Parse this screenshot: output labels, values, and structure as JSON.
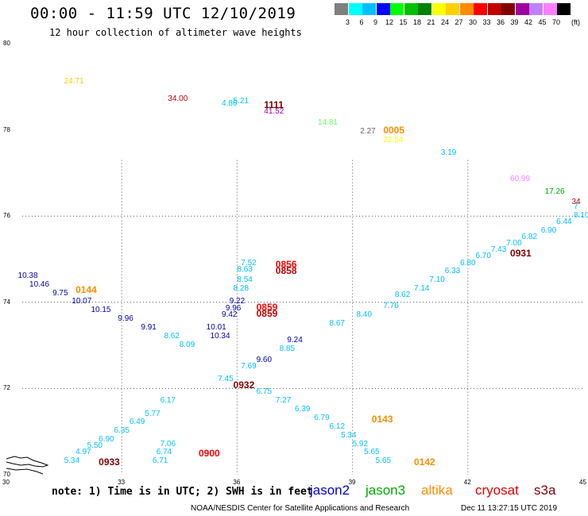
{
  "header": {
    "title": "00:00 - 11:59 UTC 12/10/2019",
    "subtitle": "12 hour collection of altimeter wave heights"
  },
  "legend": {
    "unit": "(ft)",
    "bins": [
      {
        "label": "3",
        "color": "#7f7f7f"
      },
      {
        "label": "6",
        "color": "#00ffff"
      },
      {
        "label": "9",
        "color": "#00bfff"
      },
      {
        "label": "12",
        "color": "#0000ff"
      },
      {
        "label": "15",
        "color": "#00ff00"
      },
      {
        "label": "18",
        "color": "#00c000"
      },
      {
        "label": "21",
        "color": "#008000"
      },
      {
        "label": "24",
        "color": "#ffff00"
      },
      {
        "label": "27",
        "color": "#ffd000"
      },
      {
        "label": "30",
        "color": "#ff8c00"
      },
      {
        "label": "33",
        "color": "#ff0000"
      },
      {
        "label": "36",
        "color": "#c00000"
      },
      {
        "label": "39",
        "color": "#800000"
      },
      {
        "label": "42",
        "color": "#a000a0"
      },
      {
        "label": "45",
        "color": "#c080ff"
      },
      {
        "label": "70",
        "color": "#ff80ff"
      },
      {
        "label": "",
        "color": "#000000"
      }
    ]
  },
  "map": {
    "lon_range": [
      30,
      45
    ],
    "lat_range": [
      70,
      80
    ],
    "lat_ticks": [
      {
        "value": 80,
        "label": "80"
      },
      {
        "value": 78,
        "label": "78"
      },
      {
        "value": 76,
        "label": "76"
      },
      {
        "value": 74,
        "label": "74"
      },
      {
        "value": 72,
        "label": "72"
      },
      {
        "value": 70,
        "label": "70"
      }
    ],
    "lon_ticks": [
      {
        "value": 30,
        "label": "30"
      },
      {
        "value": 33,
        "label": "33"
      },
      {
        "value": 36,
        "label": "36"
      },
      {
        "value": 39,
        "label": "39"
      },
      {
        "value": 42,
        "label": "42"
      },
      {
        "value": 45,
        "label": "45"
      }
    ],
    "grid": true,
    "observations": [
      {
        "lon": 31.5,
        "lat": 79.2,
        "text": "24.71",
        "color": "#ffcc00"
      },
      {
        "lon": 34.2,
        "lat": 78.8,
        "text": "34.00",
        "color": "#c00000"
      },
      {
        "lon": 35.6,
        "lat": 78.7,
        "text": "4.86",
        "color": "#00bfff"
      },
      {
        "lon": 35.9,
        "lat": 78.75,
        "text": "5.21",
        "color": "#00bfff"
      },
      {
        "lon": 36.7,
        "lat": 78.5,
        "text": "41.52",
        "color": "#a000a0"
      },
      {
        "lon": 38.1,
        "lat": 78.25,
        "text": "14.81",
        "color": "#66ff66"
      },
      {
        "lon": 39.2,
        "lat": 78.05,
        "text": "2.27",
        "color": "#666666"
      },
      {
        "lon": 39.8,
        "lat": 77.85,
        "text": "22.54",
        "color": "#ffff00"
      },
      {
        "lon": 41.3,
        "lat": 77.55,
        "text": "3.19",
        "color": "#00bfff"
      },
      {
        "lon": 43.1,
        "lat": 76.95,
        "text": "60.99",
        "color": "#ff80ff"
      },
      {
        "lon": 44.0,
        "lat": 76.65,
        "text": "17.26",
        "color": "#00b000"
      },
      {
        "lon": 44.7,
        "lat": 76.4,
        "text": "34",
        "color": "#c00000"
      },
      {
        "lon": 30.3,
        "lat": 74.7,
        "text": "10.38",
        "color": "#0000aa"
      },
      {
        "lon": 30.6,
        "lat": 74.5,
        "text": "10.46",
        "color": "#0000aa"
      },
      {
        "lon": 31.2,
        "lat": 74.3,
        "text": "9.75",
        "color": "#0000aa"
      },
      {
        "lon": 31.7,
        "lat": 74.1,
        "text": "10.07",
        "color": "#0000aa"
      },
      {
        "lon": 32.2,
        "lat": 73.9,
        "text": "10.15",
        "color": "#0000aa"
      },
      {
        "lon": 32.9,
        "lat": 73.7,
        "text": "9.96",
        "color": "#0000aa"
      },
      {
        "lon": 33.5,
        "lat": 73.5,
        "text": "9.91",
        "color": "#0000aa"
      },
      {
        "lon": 34.1,
        "lat": 73.3,
        "text": "8.62",
        "color": "#00bfff"
      },
      {
        "lon": 34.5,
        "lat": 73.1,
        "text": "8.09",
        "color": "#00bfff"
      },
      {
        "lon": 35.2,
        "lat": 73.5,
        "text": "10.01",
        "color": "#0000aa"
      },
      {
        "lon": 35.3,
        "lat": 73.3,
        "text": "10.34",
        "color": "#0000aa"
      },
      {
        "lon": 35.6,
        "lat": 73.8,
        "text": "9.42",
        "color": "#0000aa"
      },
      {
        "lon": 35.7,
        "lat": 73.95,
        "text": "9.96",
        "color": "#0000aa"
      },
      {
        "lon": 35.8,
        "lat": 74.1,
        "text": "9.22",
        "color": "#0000aa"
      },
      {
        "lon": 35.9,
        "lat": 74.4,
        "text": "8.28",
        "color": "#00bfff"
      },
      {
        "lon": 36.0,
        "lat": 74.6,
        "text": "8.54",
        "color": "#00bfff"
      },
      {
        "lon": 36.0,
        "lat": 74.85,
        "text": "8.63",
        "color": "#00bfff"
      },
      {
        "lon": 36.1,
        "lat": 75.0,
        "text": "7.52",
        "color": "#00bfff"
      },
      {
        "lon": 36.5,
        "lat": 72.75,
        "text": "9.60",
        "color": "#0000aa"
      },
      {
        "lon": 36.1,
        "lat": 72.6,
        "text": "7.69",
        "color": "#00bfff"
      },
      {
        "lon": 35.5,
        "lat": 72.3,
        "text": "7.45",
        "color": "#00bfff"
      },
      {
        "lon": 37.1,
        "lat": 73.0,
        "text": "8.85",
        "color": "#00bfff"
      },
      {
        "lon": 37.3,
        "lat": 73.2,
        "text": "9.24",
        "color": "#0000aa"
      },
      {
        "lon": 38.4,
        "lat": 73.6,
        "text": "8.67",
        "color": "#00bfff"
      },
      {
        "lon": 39.1,
        "lat": 73.8,
        "text": "8.40",
        "color": "#00bfff"
      },
      {
        "lon": 39.8,
        "lat": 74.0,
        "text": "7.76",
        "color": "#00bfff"
      },
      {
        "lon": 40.1,
        "lat": 74.25,
        "text": "8.62",
        "color": "#00bfff"
      },
      {
        "lon": 40.6,
        "lat": 74.4,
        "text": "7.14",
        "color": "#00bfff"
      },
      {
        "lon": 41.0,
        "lat": 74.6,
        "text": "7.10",
        "color": "#00bfff"
      },
      {
        "lon": 41.4,
        "lat": 74.8,
        "text": "6.33",
        "color": "#00bfff"
      },
      {
        "lon": 41.8,
        "lat": 75.0,
        "text": "6.80",
        "color": "#00bfff"
      },
      {
        "lon": 42.2,
        "lat": 75.15,
        "text": "6.70",
        "color": "#00bfff"
      },
      {
        "lon": 42.6,
        "lat": 75.3,
        "text": "7.43",
        "color": "#00bfff"
      },
      {
        "lon": 43.0,
        "lat": 75.45,
        "text": "7.00",
        "color": "#00bfff"
      },
      {
        "lon": 43.4,
        "lat": 75.6,
        "text": "6.82",
        "color": "#00bfff"
      },
      {
        "lon": 43.9,
        "lat": 75.75,
        "text": "6.90",
        "color": "#00bfff"
      },
      {
        "lon": 44.3,
        "lat": 75.95,
        "text": "6.44",
        "color": "#00bfff"
      },
      {
        "lon": 44.8,
        "lat": 76.1,
        "text": "8.10",
        "color": "#00bfff"
      },
      {
        "lon": 45.2,
        "lat": 76.3,
        "text": "7",
        "color": "#00bfff"
      },
      {
        "lon": 36.5,
        "lat": 72.0,
        "text": "6.75",
        "color": "#00bfff"
      },
      {
        "lon": 37.0,
        "lat": 71.8,
        "text": "7.27",
        "color": "#00bfff"
      },
      {
        "lon": 37.5,
        "lat": 71.6,
        "text": "6.39",
        "color": "#00bfff"
      },
      {
        "lon": 38.0,
        "lat": 71.4,
        "text": "6.79",
        "color": "#00bfff"
      },
      {
        "lon": 38.4,
        "lat": 71.2,
        "text": "6.12",
        "color": "#00bfff"
      },
      {
        "lon": 38.7,
        "lat": 71.0,
        "text": "5.34",
        "color": "#00bfff"
      },
      {
        "lon": 39.0,
        "lat": 70.8,
        "text": "5.92",
        "color": "#00bfff"
      },
      {
        "lon": 39.3,
        "lat": 70.6,
        "text": "5.65",
        "color": "#00bfff"
      },
      {
        "lon": 39.6,
        "lat": 70.4,
        "text": "5.65",
        "color": "#00bfff"
      },
      {
        "lon": 34.0,
        "lat": 71.8,
        "text": "6.17",
        "color": "#00bfff"
      },
      {
        "lon": 33.6,
        "lat": 71.5,
        "text": "5.77",
        "color": "#00bfff"
      },
      {
        "lon": 33.2,
        "lat": 71.3,
        "text": "6.49",
        "color": "#00bfff"
      },
      {
        "lon": 32.8,
        "lat": 71.1,
        "text": "6.35",
        "color": "#00bfff"
      },
      {
        "lon": 32.4,
        "lat": 70.9,
        "text": "6.90",
        "color": "#00bfff"
      },
      {
        "lon": 32.1,
        "lat": 70.75,
        "text": "5.50",
        "color": "#00bfff"
      },
      {
        "lon": 31.8,
        "lat": 70.6,
        "text": "4.97",
        "color": "#00bfff"
      },
      {
        "lon": 31.5,
        "lat": 70.4,
        "text": "5.34",
        "color": "#00bfff"
      },
      {
        "lon": 34.0,
        "lat": 70.8,
        "text": "7.06",
        "color": "#00bfff"
      },
      {
        "lon": 33.9,
        "lat": 70.6,
        "text": "6.74",
        "color": "#00bfff"
      },
      {
        "lon": 33.8,
        "lat": 70.4,
        "text": "6.71",
        "color": "#00bfff"
      }
    ],
    "passes": [
      {
        "lon": 36.7,
        "lat": 78.7,
        "text": "1111",
        "color": "#800000"
      },
      {
        "lon": 39.8,
        "lat": 78.1,
        "text": "0005",
        "color": "#ff8c00"
      },
      {
        "lon": 31.8,
        "lat": 74.4,
        "text": "0144",
        "color": "#ff8c00"
      },
      {
        "lon": 37.0,
        "lat": 75.0,
        "text": "0856",
        "color": "#ff0000"
      },
      {
        "lon": 37.0,
        "lat": 74.85,
        "text": "0858",
        "color": "#c00000"
      },
      {
        "lon": 36.5,
        "lat": 74.0,
        "text": "0859",
        "color": "#ff0000"
      },
      {
        "lon": 36.5,
        "lat": 73.85,
        "text": "0859",
        "color": "#c00000"
      },
      {
        "lon": 43.1,
        "lat": 75.25,
        "text": "0931",
        "color": "#800000"
      },
      {
        "lon": 35.9,
        "lat": 72.2,
        "text": "0932",
        "color": "#800000"
      },
      {
        "lon": 39.5,
        "lat": 71.4,
        "text": "0143",
        "color": "#ff8c00"
      },
      {
        "lon": 35.0,
        "lat": 70.6,
        "text": "0900",
        "color": "#ff0000"
      },
      {
        "lon": 32.4,
        "lat": 70.4,
        "text": "0933",
        "color": "#800000"
      },
      {
        "lon": 40.6,
        "lat": 70.4,
        "text": "0142",
        "color": "#ff8c00"
      }
    ]
  },
  "footer": {
    "note": "note: 1) Time is in UTC; 2) SWH is in feet",
    "satellites": [
      {
        "name": "jason2",
        "color": "#0000cc"
      },
      {
        "name": "jason3",
        "color": "#00aa00"
      },
      {
        "name": "altika",
        "color": "#ff8c00"
      },
      {
        "name": "cryosat",
        "color": "#dd0000"
      },
      {
        "name": "s3a",
        "color": "#800000"
      }
    ],
    "credit": "NOAA/NESDIS Center for Satellite Applications and Research",
    "timestamp": "Dec 11 13:27:15 UTC 2019"
  }
}
